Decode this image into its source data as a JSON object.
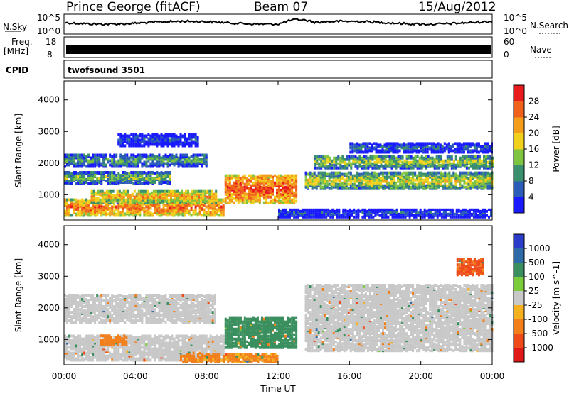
{
  "header": {
    "station": "Prince George (fitACF)",
    "beam": "Beam 07",
    "date": "15/Aug/2012"
  },
  "strips": {
    "nsky_label": "N.Sky",
    "nsky_ticks": [
      "10^5",
      "10^0"
    ],
    "nsearch_label": "N.Search",
    "freq_label_1": "Freq.",
    "freq_label_2": "[MHz]",
    "freq_ticks": [
      "18",
      "8"
    ],
    "nave_label": "Nave",
    "nave_ticks": [
      "60",
      "0"
    ],
    "cpid_label": "CPID",
    "cpid_value": "twofsound 3501"
  },
  "chart_data": [
    {
      "type": "heatmap",
      "title": "",
      "xlabel": "Time UT",
      "ylabel": "Slant Range [km]",
      "x_ticks": [
        "00:00",
        "04:00",
        "08:00",
        "12:00",
        "16:00",
        "20:00",
        "00:00"
      ],
      "y_ticks": [
        "1000",
        "2000",
        "3000",
        "4000"
      ],
      "ylim": [
        200,
        4600
      ],
      "colorbar_label": "Power [dB]",
      "colorbar_ticks": [
        "4",
        "8",
        "12",
        "16",
        "20",
        "24",
        "28"
      ],
      "colorbar_colors": [
        "#1a1aff",
        "#2a5cb8",
        "#3a8f6e",
        "#7fc441",
        "#f2d11c",
        "#f49d1a",
        "#f0611c",
        "#e81c1c"
      ],
      "bands": [
        {
          "t0": 0.0,
          "t1": 9.0,
          "r0": 300,
          "r1": 800,
          "level": 26
        },
        {
          "t0": 1.5,
          "t1": 8.5,
          "r0": 700,
          "r1": 1100,
          "level": 22
        },
        {
          "t0": 0.0,
          "t1": 6.0,
          "r0": 1300,
          "r1": 1700,
          "level": 14
        },
        {
          "t0": 0.0,
          "t1": 8.0,
          "r0": 1850,
          "r1": 2250,
          "level": 12
        },
        {
          "t0": 3.0,
          "t1": 7.5,
          "r0": 2500,
          "r1": 2900,
          "level": 6
        },
        {
          "t0": 9.0,
          "t1": 13.0,
          "r0": 700,
          "r1": 1600,
          "level": 28
        },
        {
          "t0": 13.5,
          "t1": 24.0,
          "r0": 1150,
          "r1": 1650,
          "level": 18
        },
        {
          "t0": 14.0,
          "t1": 24.0,
          "r0": 1800,
          "r1": 2200,
          "level": 16
        },
        {
          "t0": 16.0,
          "t1": 24.0,
          "r0": 2300,
          "r1": 2600,
          "level": 8
        },
        {
          "t0": 12.0,
          "t1": 24.0,
          "r0": 250,
          "r1": 500,
          "level": 6
        }
      ]
    },
    {
      "type": "heatmap",
      "title": "",
      "xlabel": "Time UT",
      "ylabel": "Slant Range [km]",
      "x_ticks": [
        "00:00",
        "04:00",
        "08:00",
        "12:00",
        "16:00",
        "20:00",
        "00:00"
      ],
      "y_ticks": [
        "1000",
        "2000",
        "3000",
        "4000"
      ],
      "ylim": [
        200,
        4600
      ],
      "colorbar_label": "Velocity [m s^-1]",
      "colorbar_ticks": [
        "1000",
        "500",
        "100",
        "25",
        "-25",
        "-100",
        "-500",
        "-1000"
      ],
      "colorbar_colors": [
        "#2a3cc8",
        "#2e6aa8",
        "#3a8f5e",
        "#7acc3a",
        "#c8c8c8",
        "#f5b01e",
        "#f27f1a",
        "#ef4a1a",
        "#e01818"
      ],
      "bands": [
        {
          "t0": 0.0,
          "t1": 9.0,
          "r0": 300,
          "r1": 1100,
          "level": 0
        },
        {
          "t0": 0.0,
          "t1": 8.5,
          "r0": 1500,
          "r1": 2400,
          "level": 0
        },
        {
          "t0": 2.0,
          "t1": 3.5,
          "r0": 800,
          "r1": 1100,
          "level": -300
        },
        {
          "t0": 9.0,
          "t1": 13.0,
          "r0": 700,
          "r1": 1650,
          "level": 150
        },
        {
          "t0": 13.5,
          "t1": 24.0,
          "r0": 600,
          "r1": 2700,
          "level": 0
        },
        {
          "t0": 22.0,
          "t1": 23.5,
          "r0": 3000,
          "r1": 3500,
          "level": -600
        },
        {
          "t0": 6.5,
          "t1": 12.0,
          "r0": 250,
          "r1": 500,
          "level": -120
        }
      ]
    }
  ]
}
